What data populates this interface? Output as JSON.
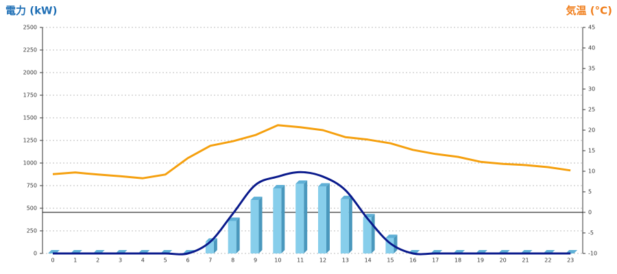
{
  "chart_data": {
    "type": "combo",
    "ylabel": "電力 (kW)",
    "y2label": "気温 (°C)",
    "ylabel_color": "#1f6fb5",
    "y2label_color": "#f07d1a",
    "categories": [
      "0",
      "1",
      "2",
      "3",
      "4",
      "5",
      "6",
      "7",
      "8",
      "9",
      "10",
      "11",
      "12",
      "13",
      "14",
      "15",
      "16",
      "17",
      "18",
      "19",
      "20",
      "21",
      "22",
      "23"
    ],
    "series": [
      {
        "type": "bar",
        "color": "#87ceeb",
        "values": [
          0,
          0,
          0,
          0,
          0,
          0,
          0,
          130,
          360,
          590,
          720,
          770,
          740,
          600,
          400,
          170,
          0,
          0,
          0,
          0,
          0,
          0,
          0,
          0
        ]
      },
      {
        "type": "line",
        "smooth": true,
        "color": "#0a1a8c",
        "values": [
          0,
          0,
          0,
          0,
          0,
          0,
          0,
          130,
          440,
          757,
          850,
          900,
          850,
          700,
          380,
          110,
          0,
          0,
          0,
          0,
          0,
          0,
          0,
          0
        ]
      },
      {
        "type": "line",
        "axis": "y2",
        "color": "#f5a00f",
        "values": [
          9.3,
          9.7,
          9.2,
          8.8,
          8.3,
          9.2,
          13.2,
          16.2,
          17.3,
          18.8,
          21.2,
          20.7,
          20,
          18.3,
          17.7,
          16.8,
          15.2,
          14.2,
          13.5,
          12.3,
          11.8,
          11.5,
          11,
          10.2
        ]
      }
    ],
    "ylim": [
      0,
      2500
    ],
    "yticks": [
      0,
      250,
      500,
      750,
      1000,
      1250,
      1500,
      1750,
      2000,
      2250,
      2500
    ],
    "y2lim": [
      -10,
      45
    ],
    "y2ticks": [
      -10,
      -5,
      0,
      5,
      10,
      15,
      20,
      25,
      30,
      35,
      40,
      45
    ],
    "grid": true,
    "zero_line_y2": 0
  }
}
